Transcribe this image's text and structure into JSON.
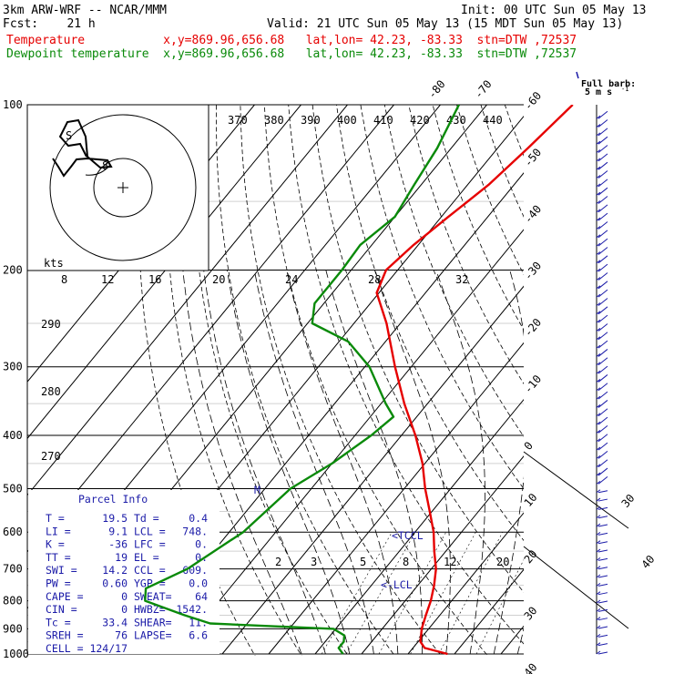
{
  "header": {
    "model": "3km ARW-WRF -- NCAR/MMM",
    "init": "Init: 00 UTC Sun 05 May 13",
    "fcst": "Fcst:    21 h",
    "valid": "Valid: 21 UTC Sun 05 May 13 (15 MDT Sun 05 May 13)",
    "temp_line": "Temperature           x,y=869.96,656.68   lat,lon= 42.23, -83.33  stn=DTW ,72537",
    "dew_line": "Dewpoint temperature  x,y=869.96,656.68   lat,lon= 42.23, -83.33  stn=DTW ,72537",
    "colors": {
      "temperature": "#e60000",
      "dewpoint": "#0a8a0a",
      "text": "#000000",
      "parcel": "#1b1ba8"
    }
  },
  "barb_key": {
    "line1": "Full barb:",
    "line2": "5 m s",
    "sup": "-1"
  },
  "hodograph": {
    "kts_label": "kts",
    "ring_labels": [
      "8",
      "12",
      "16",
      "20",
      "24",
      "28",
      "32"
    ],
    "ring_label_values": [
      8,
      12,
      16,
      20,
      24,
      28,
      32
    ],
    "hodo_marks": [
      "S",
      "8"
    ]
  },
  "theta_e_labels": [
    "370",
    "380",
    "390",
    "400",
    "410",
    "420",
    "430",
    "440"
  ],
  "theta_labels": [
    "290",
    "280",
    "270"
  ],
  "mixing_ratio_labels": [
    "2",
    "3",
    "5",
    "8",
    "12",
    "20"
  ],
  "markers": {
    "tccl": "<TCCL",
    "lcl": "<-LCL",
    "m": "M"
  },
  "parcel": {
    "title": "Parcel Info",
    "rows": [
      [
        "T  =",
        "19.5",
        "Td =",
        "0.4"
      ],
      [
        "LI =",
        "9.1",
        "LCL =",
        "748."
      ],
      [
        "K  =",
        "-36",
        "LFC =",
        "0."
      ],
      [
        "TT =",
        "19",
        "EL  =",
        "0."
      ],
      [
        "SWI =",
        "14.2",
        "CCL =",
        "609."
      ],
      [
        "PW =",
        "0.60",
        "YGP =",
        "0.0"
      ],
      [
        "CAPE =",
        "0",
        "SWEAT=",
        "64"
      ],
      [
        "CIN =",
        "0",
        "HWBZ=",
        "1542."
      ],
      [
        "Tc =",
        "33.4",
        "SHEAR=",
        "11."
      ],
      [
        "SREH =",
        "76",
        "LAPSE=",
        "6.6"
      ],
      [
        "CELL =",
        "124/17",
        "",
        ""
      ]
    ]
  },
  "chart_data": {
    "type": "skew-t log-p",
    "pressure_levels": [
      100,
      200,
      300,
      400,
      500,
      600,
      700,
      800,
      900,
      1000
    ],
    "temperature_ticks": [
      -80,
      -70,
      -60,
      -50,
      -40,
      -30,
      -20,
      -10,
      0,
      10,
      20,
      30,
      40
    ],
    "series": [
      {
        "name": "Temperature",
        "color": "#e60000",
        "points": [
          [
            1000,
            18.5
          ],
          [
            975,
            12.5
          ],
          [
            950,
            10.5
          ],
          [
            900,
            8.5
          ],
          [
            850,
            7.0
          ],
          [
            800,
            5.5
          ],
          [
            750,
            3.5
          ],
          [
            700,
            1.0
          ],
          [
            650,
            -2.5
          ],
          [
            600,
            -6.0
          ],
          [
            550,
            -10.5
          ],
          [
            500,
            -15.5
          ],
          [
            450,
            -20.5
          ],
          [
            400,
            -27.0
          ],
          [
            350,
            -35.0
          ],
          [
            300,
            -43.5
          ],
          [
            250,
            -53.0
          ],
          [
            220,
            -60.5
          ],
          [
            200,
            -62.5
          ],
          [
            180,
            -61.0
          ],
          [
            160,
            -58.5
          ],
          [
            140,
            -55.5
          ],
          [
            120,
            -53.5
          ],
          [
            100,
            -51.5
          ]
        ]
      },
      {
        "name": "Dewpoint temperature",
        "color": "#0a8a0a",
        "points": [
          [
            1000,
            -4.0
          ],
          [
            975,
            -6.0
          ],
          [
            950,
            -6.0
          ],
          [
            925,
            -7.0
          ],
          [
            900,
            -10.5
          ],
          [
            880,
            -38.0
          ],
          [
            850,
            -45.0
          ],
          [
            800,
            -56.0
          ],
          [
            760,
            -58.0
          ],
          [
            700,
            -52.5
          ],
          [
            600,
            -47.0
          ],
          [
            500,
            -44.5
          ],
          [
            450,
            -40.0
          ],
          [
            400,
            -36.5
          ],
          [
            370,
            -35.0
          ],
          [
            350,
            -39.0
          ],
          [
            300,
            -49.0
          ],
          [
            270,
            -58.0
          ],
          [
            250,
            -69.0
          ],
          [
            230,
            -72.0
          ],
          [
            200,
            -72.0
          ],
          [
            180,
            -72.5
          ],
          [
            160,
            -70.0
          ],
          [
            140,
            -71.5
          ],
          [
            120,
            -73.0
          ],
          [
            100,
            -76.0
          ]
        ]
      }
    ]
  }
}
